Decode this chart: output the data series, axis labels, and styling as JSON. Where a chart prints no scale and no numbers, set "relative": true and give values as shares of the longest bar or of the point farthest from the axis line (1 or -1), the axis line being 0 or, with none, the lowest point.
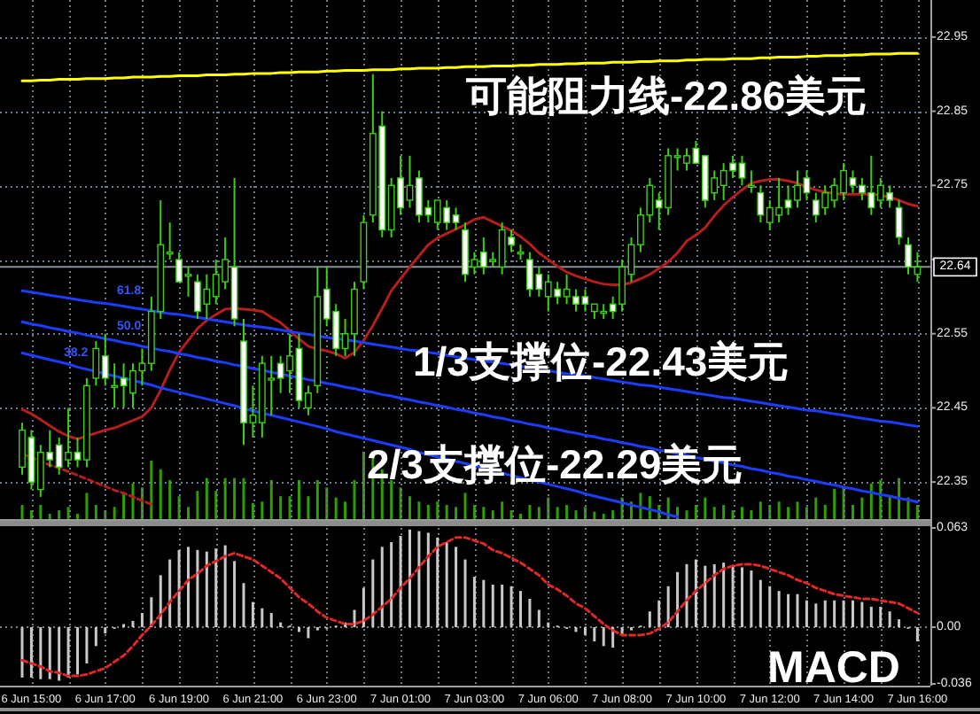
{
  "chart_data": [
    {
      "type": "candlestick",
      "categories": [
        null,
        null,
        null,
        null,
        null,
        null,
        null,
        null,
        null,
        null,
        null,
        null,
        null,
        null,
        null,
        null,
        null,
        null,
        null,
        null,
        null,
        null,
        null,
        null,
        null,
        null,
        null,
        null,
        null,
        null,
        null,
        null,
        null,
        null,
        null,
        null,
        null,
        null,
        null,
        null,
        null,
        null,
        null,
        null,
        null,
        null,
        null,
        null,
        null,
        null,
        null,
        null,
        null,
        null,
        null,
        null,
        null,
        null,
        null,
        null,
        null,
        null,
        null,
        null,
        null,
        null,
        null,
        null,
        null,
        null,
        null,
        null,
        null,
        null,
        null,
        null,
        null,
        null,
        null,
        null,
        null,
        null,
        null,
        null,
        null,
        null,
        null,
        null,
        null,
        null,
        null,
        null,
        null,
        null,
        null,
        null,
        null,
        null
      ],
      "ylim": [
        22.3,
        23.0
      ],
      "yticks": [
        22.35,
        22.45,
        22.55,
        {
          "value": 22.65,
          "label": null
        },
        22.75,
        22.85,
        22.95
      ],
      "grid": true,
      "tick_labels": "y",
      "color": "#3ccf14",
      "ohlc": [
        [
          22.37,
          22.43,
          22.36,
          22.42
        ],
        [
          22.41,
          22.42,
          22.34,
          22.35
        ],
        [
          22.34,
          22.4,
          22.33,
          22.39
        ],
        [
          22.39,
          22.42,
          22.37,
          22.38
        ],
        [
          22.4,
          22.41,
          22.36,
          22.37
        ],
        [
          22.38,
          22.45,
          22.37,
          22.39
        ],
        [
          22.39,
          22.41,
          22.37,
          22.38
        ],
        [
          22.38,
          22.49,
          22.37,
          22.48
        ],
        [
          22.49,
          22.54,
          22.48,
          22.53
        ],
        [
          22.52,
          22.55,
          22.48,
          22.49
        ],
        [
          22.48,
          22.51,
          22.45,
          22.48
        ],
        [
          22.49,
          22.51,
          22.45,
          22.48
        ],
        [
          22.47,
          22.51,
          22.45,
          22.5
        ],
        [
          22.5,
          22.53,
          22.48,
          22.51
        ],
        [
          22.51,
          22.6,
          22.5,
          22.58
        ],
        [
          22.58,
          22.73,
          22.57,
          22.67
        ],
        [
          22.66,
          22.7,
          22.65,
          22.66
        ],
        [
          22.65,
          22.66,
          22.62,
          22.62
        ],
        [
          22.63,
          22.64,
          22.6,
          22.63
        ],
        [
          22.62,
          22.63,
          22.57,
          22.58
        ],
        [
          22.59,
          22.63,
          22.57,
          22.61
        ],
        [
          22.6,
          22.65,
          22.59,
          22.63
        ],
        [
          22.62,
          22.68,
          22.61,
          22.65
        ],
        [
          22.64,
          22.76,
          22.56,
          22.57
        ],
        [
          22.54,
          22.57,
          22.4,
          22.43
        ],
        [
          22.43,
          22.48,
          22.41,
          22.44
        ],
        [
          22.43,
          22.52,
          22.41,
          22.51
        ],
        [
          22.49,
          22.52,
          22.44,
          22.49
        ],
        [
          22.51,
          22.52,
          22.47,
          22.49
        ],
        [
          22.5,
          22.55,
          22.47,
          22.52
        ],
        [
          22.53,
          22.55,
          22.45,
          22.46
        ],
        [
          22.45,
          22.48,
          22.44,
          22.47
        ],
        [
          22.48,
          22.64,
          22.47,
          22.6
        ],
        [
          22.61,
          22.64,
          22.56,
          22.57
        ],
        [
          22.58,
          22.59,
          22.52,
          22.53
        ],
        [
          22.53,
          22.57,
          22.52,
          22.55
        ],
        [
          22.55,
          22.62,
          22.52,
          22.61
        ],
        [
          22.62,
          22.71,
          22.61,
          22.7
        ],
        [
          22.71,
          22.9,
          22.7,
          22.82
        ],
        [
          22.83,
          22.85,
          22.68,
          22.69
        ],
        [
          22.69,
          22.76,
          22.68,
          22.75
        ],
        [
          22.76,
          22.79,
          22.71,
          22.72
        ],
        [
          22.73,
          22.79,
          22.72,
          22.75
        ],
        [
          22.76,
          22.77,
          22.7,
          22.71
        ],
        [
          22.72,
          22.73,
          22.7,
          22.71
        ],
        [
          22.7,
          22.73,
          22.69,
          22.73
        ],
        [
          22.72,
          22.73,
          22.69,
          22.7
        ],
        [
          22.71,
          22.72,
          22.69,
          22.7
        ],
        [
          22.69,
          22.7,
          22.62,
          22.63
        ],
        [
          22.64,
          22.66,
          22.63,
          22.65
        ],
        [
          22.66,
          22.68,
          22.63,
          22.64
        ],
        [
          22.65,
          22.66,
          22.64,
          22.65
        ],
        [
          22.64,
          22.7,
          22.63,
          22.69
        ],
        [
          22.68,
          22.69,
          22.66,
          22.67
        ],
        [
          22.66,
          22.67,
          22.65,
          22.66
        ],
        [
          22.65,
          22.66,
          22.6,
          22.61
        ],
        [
          22.63,
          22.64,
          22.6,
          22.61
        ],
        [
          22.6,
          22.63,
          22.58,
          22.62
        ],
        [
          22.61,
          22.62,
          22.59,
          22.6
        ],
        [
          22.6,
          22.63,
          22.59,
          22.61
        ],
        [
          22.6,
          22.61,
          22.58,
          22.59
        ],
        [
          22.6,
          22.61,
          22.58,
          22.59
        ],
        [
          22.58,
          22.59,
          22.57,
          22.59
        ],
        [
          22.58,
          22.59,
          22.57,
          22.58
        ],
        [
          22.59,
          22.6,
          22.57,
          22.58
        ],
        [
          22.59,
          22.65,
          22.58,
          22.64
        ],
        [
          22.63,
          22.68,
          22.62,
          22.67
        ],
        [
          22.67,
          22.72,
          22.66,
          22.71
        ],
        [
          22.71,
          22.76,
          22.7,
          22.75
        ],
        [
          22.73,
          22.74,
          22.69,
          22.72
        ],
        [
          22.72,
          22.8,
          22.71,
          22.79
        ],
        [
          22.79,
          22.8,
          22.77,
          22.79
        ],
        [
          22.78,
          22.8,
          22.77,
          22.79
        ],
        [
          22.8,
          22.81,
          22.78,
          22.78
        ],
        [
          22.79,
          22.79,
          22.72,
          22.73
        ],
        [
          22.74,
          22.77,
          22.73,
          22.76
        ],
        [
          22.75,
          22.78,
          22.73,
          22.77
        ],
        [
          22.78,
          22.79,
          22.76,
          22.77
        ],
        [
          22.78,
          22.79,
          22.75,
          22.76
        ],
        [
          22.75,
          22.77,
          22.74,
          22.75
        ],
        [
          22.74,
          22.75,
          22.7,
          22.71
        ],
        [
          22.7,
          22.73,
          22.69,
          22.72
        ],
        [
          22.71,
          22.76,
          22.7,
          22.72
        ],
        [
          22.73,
          22.75,
          22.71,
          22.72
        ],
        [
          22.73,
          22.77,
          22.72,
          22.75
        ],
        [
          22.76,
          22.77,
          22.73,
          22.74
        ],
        [
          22.73,
          22.74,
          22.7,
          22.71
        ],
        [
          22.72,
          22.75,
          22.71,
          22.74
        ],
        [
          22.73,
          22.76,
          22.72,
          22.75
        ],
        [
          22.74,
          22.78,
          22.73,
          22.77
        ],
        [
          22.76,
          22.77,
          22.74,
          22.75
        ],
        [
          22.75,
          22.76,
          22.73,
          22.74
        ],
        [
          22.74,
          22.79,
          22.71,
          22.72
        ],
        [
          22.73,
          22.76,
          22.72,
          22.75
        ],
        [
          22.74,
          22.75,
          22.72,
          22.73
        ],
        [
          22.72,
          22.73,
          22.67,
          22.68
        ],
        [
          22.67,
          22.68,
          22.63,
          22.64
        ],
        [
          22.63,
          22.66,
          22.62,
          22.64
        ]
      ],
      "series": [
        {
          "type": "line",
          "color": "#b41e1e",
          "values": [
            22.448,
            22.442,
            22.434,
            22.426,
            22.418,
            22.412,
            22.408,
            22.412,
            22.416,
            22.42,
            22.423,
            22.428,
            22.433,
            22.438,
            22.45,
            22.474,
            22.501,
            22.525,
            22.541,
            22.557,
            22.568,
            22.576,
            22.583,
            22.584,
            22.583,
            22.582,
            22.58,
            22.572,
            22.565,
            22.554,
            22.543,
            22.533,
            22.529,
            22.527,
            22.523,
            22.517,
            22.525,
            22.541,
            22.561,
            22.584,
            22.608,
            22.624,
            22.64,
            22.655,
            22.67,
            22.679,
            22.685,
            22.691,
            22.697,
            22.704,
            22.707,
            22.701,
            22.695,
            22.689,
            22.681,
            22.671,
            22.659,
            22.65,
            22.641,
            22.633,
            22.628,
            22.624,
            22.62,
            22.617,
            22.616,
            22.616,
            22.619,
            22.624,
            22.63,
            22.638,
            22.647,
            22.659,
            22.675,
            22.683,
            22.693,
            22.709,
            22.723,
            22.734,
            22.744,
            22.753,
            22.756,
            22.758,
            22.758,
            22.756,
            22.753,
            22.748,
            22.744,
            22.741,
            22.739,
            22.738,
            22.738,
            22.738,
            22.738,
            22.737,
            22.734,
            22.73,
            22.725,
            22.722
          ]
        },
        {
          "type": "line",
          "color": "#b41e1e",
          "line_style": "dashed",
          "values": [
            22.388,
            22.383,
            22.378,
            22.373,
            22.369,
            22.364,
            22.359,
            22.354,
            22.349,
            22.344,
            22.339,
            22.335,
            22.33,
            22.325,
            22.32,
            null,
            null,
            null,
            null,
            null,
            null,
            null,
            null,
            null,
            null,
            null,
            null,
            null,
            null,
            null,
            null,
            null,
            null,
            null,
            null,
            null,
            null,
            null,
            null,
            null,
            null,
            null,
            null,
            null,
            null,
            null,
            null,
            null,
            null,
            null,
            null,
            null,
            null,
            null,
            null,
            null,
            null,
            null,
            null,
            null,
            null,
            null,
            null,
            null,
            null,
            null,
            null,
            null,
            null,
            null,
            null,
            null,
            null,
            null,
            null,
            null,
            null,
            null,
            null,
            null,
            null,
            null,
            null,
            null,
            null,
            null,
            null,
            null,
            null,
            null,
            null,
            null,
            null,
            null,
            null,
            null,
            null,
            null
          ]
        },
        {
          "type": "line",
          "color": "#ffff00",
          "values": [
            22.891,
            22.891,
            22.892,
            22.892,
            22.893,
            22.893,
            22.893,
            22.894,
            22.894,
            22.894,
            22.895,
            22.895,
            22.896,
            22.896,
            22.896,
            22.897,
            22.897,
            22.898,
            22.898,
            22.898,
            22.899,
            22.899,
            22.899,
            22.9,
            22.9,
            22.901,
            22.901,
            22.901,
            22.902,
            22.902,
            22.903,
            22.903,
            22.903,
            22.904,
            22.904,
            22.905,
            22.905,
            22.905,
            22.906,
            22.906,
            22.906,
            22.907,
            22.907,
            22.908,
            22.908,
            22.908,
            22.909,
            22.909,
            22.91,
            22.91,
            22.91,
            22.911,
            22.911,
            22.911,
            22.912,
            22.912,
            22.913,
            22.913,
            22.913,
            22.914,
            22.914,
            22.915,
            22.915,
            22.915,
            22.916,
            22.916,
            22.916,
            22.917,
            22.917,
            22.918,
            22.918,
            22.918,
            22.919,
            22.919,
            22.92,
            22.92,
            22.92,
            22.921,
            22.921,
            22.921,
            22.922,
            22.922,
            22.923,
            22.923,
            22.923,
            22.924,
            22.924,
            22.925,
            22.925,
            22.925,
            22.926,
            22.926,
            22.927,
            22.927,
            22.927,
            22.928,
            22.928,
            22.928
          ]
        },
        {
          "type": "line",
          "color": "#1e3cff",
          "values": [
            22.608,
            22.606,
            22.604,
            22.602,
            22.6,
            22.598,
            22.596,
            22.594,
            22.592,
            22.591,
            22.589,
            22.587,
            22.585,
            22.583,
            22.581,
            22.579,
            22.577,
            22.576,
            22.574,
            22.572,
            22.57,
            22.568,
            22.566,
            22.564,
            22.562,
            22.56,
            22.559,
            22.557,
            22.555,
            22.553,
            22.551,
            22.549,
            22.547,
            22.545,
            22.543,
            22.542,
            22.54,
            22.538,
            22.536,
            22.534,
            22.532,
            22.53,
            22.528,
            22.527,
            22.525,
            22.523,
            22.521,
            22.519,
            22.517,
            22.515,
            22.513,
            22.512,
            22.51,
            22.508,
            22.506,
            22.504,
            null,
            22.5,
            22.498,
            22.496,
            22.495,
            22.493,
            22.491,
            22.489,
            22.487,
            22.485,
            22.483,
            22.481,
            22.48,
            22.478,
            22.476,
            22.474,
            22.472,
            22.47,
            22.468,
            22.466,
            22.464,
            22.463,
            22.461,
            22.459,
            22.457,
            22.455,
            22.453,
            22.451,
            22.449,
            22.447,
            22.446,
            22.444,
            22.442,
            22.44,
            22.438,
            22.436,
            22.434,
            22.432,
            22.431,
            22.429,
            22.427,
            22.425
          ]
        },
        {
          "type": "line",
          "color": "#1e3cff",
          "values": [
            22.566,
            22.563,
            22.561,
            22.558,
            22.556,
            22.553,
            22.551,
            22.548,
            22.546,
            22.543,
            22.541,
            22.538,
            22.536,
            22.533,
            22.531,
            22.528,
            22.526,
            22.523,
            22.521,
            22.518,
            22.516,
            22.513,
            22.511,
            22.508,
            22.506,
            22.503,
            22.501,
            22.498,
            22.496,
            22.493,
            22.491,
            22.488,
            22.486,
            22.483,
            22.481,
            22.478,
            22.476,
            22.473,
            22.471,
            22.468,
            22.466,
            22.463,
            22.461,
            22.458,
            22.456,
            22.453,
            22.451,
            22.448,
            22.446,
            22.443,
            22.441,
            22.438,
            22.436,
            22.433,
            22.431,
            22.428,
            22.426,
            22.423,
            22.421,
            22.418,
            22.416,
            22.413,
            22.411,
            22.408,
            22.406,
            22.403,
            22.401,
            22.398,
            22.396,
            22.393,
            22.391,
            22.388,
            22.386,
            22.383,
            22.381,
            22.378,
            22.376,
            22.373,
            22.371,
            22.368,
            22.366,
            22.363,
            22.361,
            22.358,
            22.356,
            22.353,
            22.351,
            22.348,
            22.346,
            22.343,
            22.341,
            22.338,
            22.336,
            22.333,
            22.331,
            22.328,
            22.326,
            22.323
          ]
        },
        {
          "type": "line",
          "color": "#1e3cff",
          "values": [
            22.524,
            22.521,
            22.518,
            22.515,
            22.512,
            22.509,
            22.505,
            22.502,
            22.499,
            22.496,
            22.493,
            22.49,
            22.487,
            22.484,
            22.481,
            22.477,
            22.474,
            22.471,
            22.468,
            22.465,
            22.462,
            22.459,
            22.456,
            22.453,
            22.449,
            22.446,
            22.443,
            22.44,
            22.437,
            22.434,
            22.431,
            22.428,
            22.425,
            22.422,
            22.418,
            22.415,
            22.412,
            22.409,
            22.406,
            22.403,
            22.4,
            22.397,
            22.394,
            22.39,
            22.387,
            22.384,
            22.381,
            22.378,
            22.375,
            22.372,
            22.369,
            null,
            22.362,
            22.359,
            22.356,
            22.353,
            22.35,
            22.347,
            22.344,
            22.341,
            22.338,
            22.334,
            22.331,
            22.328,
            22.325,
            22.322,
            22.319,
            22.316,
            22.313,
            22.31,
            22.306,
            22.303,
            null,
            null,
            null,
            null,
            null,
            null,
            null,
            null,
            null,
            null,
            null,
            null,
            null,
            null,
            null,
            null,
            null,
            null,
            null,
            null,
            null,
            null,
            null,
            null,
            null,
            null
          ]
        }
      ],
      "ref_lines": [
        {
          "axis": "y",
          "value": 22.64,
          "label": "22.64",
          "color": "#8a8f9c"
        }
      ],
      "annotations": [
        "可能阻力线-22.86美元",
        "1/3支撑位-22.43美元",
        "2/3支撑位-22.29美元",
        "61.8",
        "50.0",
        "38.2"
      ]
    },
    {
      "type": "bar",
      "relative": true,
      "categories": [
        null,
        null,
        null,
        null,
        null,
        null,
        null,
        null,
        null,
        null,
        null,
        null,
        null,
        null,
        null,
        null,
        null,
        null,
        null,
        null,
        null,
        null,
        null,
        null,
        null,
        null,
        null,
        null,
        null,
        null,
        null,
        null,
        null,
        null,
        null,
        null,
        null,
        null,
        null,
        null,
        null,
        null,
        null,
        null,
        null,
        null,
        null,
        null,
        null,
        null,
        null,
        null,
        null,
        null,
        null,
        null,
        null,
        null,
        null,
        null,
        null,
        null,
        null,
        null,
        null,
        null,
        null,
        null,
        null,
        null,
        null,
        null,
        null,
        null,
        null,
        null,
        null,
        null,
        null,
        null,
        null,
        null,
        null,
        null,
        null,
        null,
        null,
        null,
        null,
        null,
        null,
        null,
        null,
        null,
        null,
        null,
        null,
        null
      ],
      "tick_labels": false,
      "color": "#2e9e00",
      "values": [
        0.21,
        0.13,
        0.21,
        0.08,
        0.13,
        0.18,
        0.08,
        0.39,
        0.21,
        0.13,
        0.18,
        0.39,
        0.53,
        0.47,
        0.87,
        0.74,
        0.58,
        0.34,
        0.18,
        0.42,
        0.61,
        0.42,
        0.61,
        0.61,
        0.61,
        0.24,
        0.26,
        0.58,
        0.34,
        0.34,
        0.58,
        0.34,
        0.58,
        0.47,
        0.32,
        0.26,
        0.58,
        1,
        0.97,
        0.74,
        0.58,
        0.47,
        0.34,
        0.26,
        0.21,
        0.26,
        0.21,
        0.18,
        0.39,
        0.21,
        0.18,
        0.13,
        0.26,
        0.13,
        0.08,
        0.21,
        0.18,
        0.32,
        0.18,
        0.21,
        0.13,
        0.18,
        0.11,
        0.08,
        0.13,
        0.32,
        0.26,
        0.39,
        0.34,
        0.21,
        0.32,
        0.18,
        0.13,
        0.21,
        0.32,
        0.18,
        0.21,
        0.13,
        0.18,
        0.13,
        0.26,
        0.21,
        0.26,
        0.18,
        0.26,
        0.18,
        0.32,
        0.21,
        0.45,
        0.47,
        0.21,
        0.32,
        0.53,
        0.58,
        0.34,
        0.61,
        0.32,
        0.21
      ]
    },
    {
      "type": "bar",
      "title": "MACD",
      "categories": [
        null,
        "6 Jun 15:00",
        null,
        null,
        null,
        null,
        null,
        null,
        null,
        "6 Jun 17:00",
        null,
        null,
        null,
        null,
        null,
        null,
        null,
        "6 Jun 19:00",
        null,
        null,
        null,
        null,
        null,
        null,
        null,
        "6 Jun 21:00",
        null,
        null,
        null,
        null,
        null,
        null,
        null,
        "6 Jun 23:00",
        null,
        null,
        null,
        null,
        null,
        null,
        null,
        "7 Jun 01:00",
        null,
        null,
        null,
        null,
        null,
        null,
        null,
        "7 Jun 03:00",
        null,
        null,
        null,
        null,
        null,
        null,
        null,
        "7 Jun 06:00",
        null,
        null,
        null,
        null,
        null,
        null,
        null,
        "7 Jun 08:00",
        null,
        null,
        null,
        null,
        null,
        null,
        null,
        "7 Jun 10:00",
        null,
        null,
        null,
        null,
        null,
        null,
        null,
        "7 Jun 12:00",
        null,
        null,
        null,
        null,
        null,
        null,
        null,
        "7 Jun 14:00",
        null,
        null,
        null,
        null,
        null,
        null,
        null,
        "7 Jun 16:00"
      ],
      "ylim": [
        -0.036,
        0.063
      ],
      "yticks": [
        0.063,
        {
          "value": 0,
          "label": "0.00"
        },
        -0.036
      ],
      "grid": "x",
      "series": [
        {
          "type": "bar",
          "color": "#c8c8c8",
          "values": [
            -0.032,
            -0.032,
            -0.033,
            -0.033,
            -0.034,
            -0.032,
            -0.03,
            -0.023,
            -0.012,
            -0.004,
            -0.001,
            0.002,
            0.004,
            0.009,
            0.019,
            0.033,
            0.043,
            0.049,
            0.051,
            0.049,
            0.048,
            0.05,
            0.052,
            0.042,
            0.028,
            0.016,
            0.012,
            0.009,
            0.003,
            0.001,
            -0.003,
            -0.007,
            -0.002,
            -0.001,
            0.001,
            0.003,
            0.011,
            0.025,
            0.043,
            0.051,
            0.054,
            0.058,
            0.062,
            0.061,
            0.06,
            0.057,
            0.054,
            0.051,
            0.043,
            0.032,
            0.03,
            0.027,
            0.027,
            0.026,
            0.023,
            0.018,
            0.011,
            0.003,
            0.001,
            -0.001,
            -0.003,
            -0.005,
            -0.009,
            -0.012,
            -0.013,
            -0.005,
            -0.002,
            0.001,
            0.01,
            0.017,
            0.026,
            0.035,
            0.04,
            0.043,
            0.039,
            0.04,
            0.041,
            0.039,
            0.038,
            0.036,
            0.03,
            0.026,
            0.023,
            0.021,
            0.021,
            0.017,
            0.015,
            0.017,
            0.017,
            0.017,
            0.017,
            0.016,
            0.013,
            0.013,
            0.01,
            0.005,
            -0.001,
            -0.009
          ]
        },
        {
          "type": "line",
          "color": "#e02828",
          "line_style": "dashed",
          "values": [
            -0.021,
            -0.023,
            -0.025,
            -0.028,
            -0.029,
            -0.031,
            -0.031,
            -0.03,
            -0.028,
            -0.026,
            -0.022,
            -0.018,
            -0.012,
            -0.005,
            0.001,
            0.008,
            0.016,
            0.023,
            0.03,
            0.034,
            0.039,
            0.042,
            0.045,
            0.047,
            0.045,
            0.043,
            0.039,
            0.035,
            0.031,
            0.025,
            0.019,
            0.015,
            0.01,
            0.006,
            0.004,
            0.002,
            0.002,
            0.004,
            0.008,
            0.013,
            0.018,
            0.025,
            0.031,
            0.038,
            0.045,
            0.051,
            0.054,
            0.057,
            0.057,
            0.055,
            0.053,
            0.049,
            0.047,
            0.044,
            0.041,
            0.037,
            0.033,
            0.027,
            0.024,
            0.02,
            0.015,
            0.012,
            0.007,
            0.002,
            -0.002,
            -0.005,
            -0.005,
            -0.005,
            -0.004,
            -0.001,
            0.003,
            0.01,
            0.017,
            0.023,
            0.028,
            0.033,
            0.037,
            0.039,
            0.04,
            0.04,
            0.039,
            0.037,
            0.035,
            0.033,
            0.03,
            0.028,
            0.025,
            0.023,
            0.021,
            0.02,
            0.019,
            0.018,
            0.018,
            0.017,
            0.016,
            0.015,
            0.012,
            0.009
          ]
        }
      ],
      "ref_lines": [
        {
          "axis": "y",
          "value": 0,
          "color": "#808080",
          "line_style": "dotted"
        }
      ]
    }
  ]
}
